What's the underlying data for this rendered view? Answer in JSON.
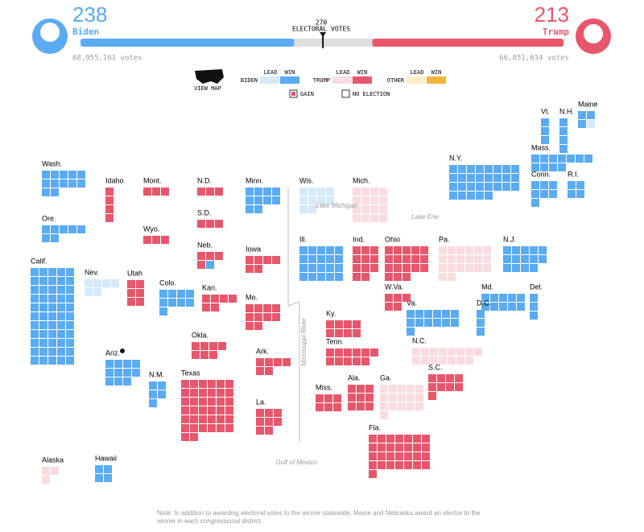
{
  "header": {
    "biden": {
      "votes": 238,
      "name": "Biden",
      "popular": "68,955,161 votes",
      "color": "#5aabf2"
    },
    "trump": {
      "votes": 213,
      "name": "Trump",
      "popular": "66,851,634 votes",
      "color": "#e8566b"
    },
    "threshold": {
      "value": 270,
      "label": "ELECTORAL VOTES"
    },
    "scale": [
      0,
      538
    ]
  },
  "legend": {
    "view_map": "VIEW MAP",
    "groups": [
      {
        "name": "BIDEN",
        "lead": "LEAD",
        "win": "WIN",
        "lead_color": "#d4e9fa",
        "win_color": "#5aabf2"
      },
      {
        "name": "TRUMP",
        "lead": "LEAD",
        "win": "WIN",
        "lead_color": "#f9dce0",
        "win_color": "#e8566b"
      },
      {
        "name": "OTHER",
        "lead": "LEAD",
        "win": "WIN",
        "lead_color": "#fbeec5",
        "win_color": "#f2b53a"
      }
    ],
    "gain": "GAIN",
    "no_election": "NO ELECTION"
  },
  "map": {
    "states": [
      {
        "label": "Wash.",
        "segments": [
          {
            "status": "biden-win",
            "votes": 12
          }
        ]
      },
      {
        "label": "Ore.",
        "segments": [
          {
            "status": "biden-win",
            "votes": 7
          }
        ]
      },
      {
        "label": "Calif.",
        "segments": [
          {
            "status": "biden-win",
            "votes": 55
          }
        ]
      },
      {
        "label": "Nev.",
        "segments": [
          {
            "status": "biden-lead",
            "votes": 6
          }
        ]
      },
      {
        "label": "Idaho",
        "segments": [
          {
            "status": "trump-win",
            "votes": 4
          }
        ]
      },
      {
        "label": "Mont.",
        "segments": [
          {
            "status": "trump-win",
            "votes": 3
          }
        ]
      },
      {
        "label": "Wyo.",
        "segments": [
          {
            "status": "trump-win",
            "votes": 3
          }
        ]
      },
      {
        "label": "Utah",
        "segments": [
          {
            "status": "trump-win",
            "votes": 6
          }
        ]
      },
      {
        "label": "Colo.",
        "segments": [
          {
            "status": "biden-win",
            "votes": 9
          }
        ]
      },
      {
        "label": "Ariz.",
        "segments": [
          {
            "status": "biden-win",
            "votes": 11
          }
        ]
      },
      {
        "label": "N.M.",
        "segments": [
          {
            "status": "biden-win",
            "votes": 5
          }
        ]
      },
      {
        "label": "N.D.",
        "segments": [
          {
            "status": "trump-win",
            "votes": 3
          }
        ]
      },
      {
        "label": "S.D.",
        "segments": [
          {
            "status": "trump-win",
            "votes": 3
          }
        ]
      },
      {
        "label": "Neb.",
        "segments": [
          {
            "status": "trump-win",
            "votes": 4
          },
          {
            "status": "biden-win",
            "votes": 1
          }
        ]
      },
      {
        "label": "Kan.",
        "segments": [
          {
            "status": "trump-win",
            "votes": 6
          }
        ]
      },
      {
        "label": "Okla.",
        "segments": [
          {
            "status": "trump-win",
            "votes": 7
          }
        ]
      },
      {
        "label": "Texas",
        "segments": [
          {
            "status": "trump-win",
            "votes": 38
          }
        ]
      },
      {
        "label": "Minn.",
        "segments": [
          {
            "status": "biden-win",
            "votes": 10
          }
        ]
      },
      {
        "label": "Iowa",
        "segments": [
          {
            "status": "trump-win",
            "votes": 6
          }
        ]
      },
      {
        "label": "Mo.",
        "segments": [
          {
            "status": "trump-win",
            "votes": 10
          }
        ]
      },
      {
        "label": "Ark.",
        "segments": [
          {
            "status": "trump-win",
            "votes": 6
          }
        ]
      },
      {
        "label": "La.",
        "segments": [
          {
            "status": "trump-win",
            "votes": 8
          }
        ]
      },
      {
        "label": "Wis.",
        "segments": [
          {
            "status": "biden-lead",
            "votes": 10
          }
        ]
      },
      {
        "label": "Mich.",
        "segments": [
          {
            "status": "trump-lead",
            "votes": 16
          }
        ]
      },
      {
        "label": "Ill.",
        "segments": [
          {
            "status": "biden-win",
            "votes": 20
          }
        ]
      },
      {
        "label": "Ind.",
        "segments": [
          {
            "status": "trump-win",
            "votes": 11
          }
        ]
      },
      {
        "label": "Ohio",
        "segments": [
          {
            "status": "trump-win",
            "votes": 18
          }
        ]
      },
      {
        "label": "Pa.",
        "segments": [
          {
            "status": "trump-lead",
            "votes": 20
          }
        ]
      },
      {
        "label": "Ky.",
        "segments": [
          {
            "status": "trump-win",
            "votes": 8
          }
        ]
      },
      {
        "label": "Tenn.",
        "segments": [
          {
            "status": "trump-win",
            "votes": 11
          }
        ]
      },
      {
        "label": "Miss.",
        "segments": [
          {
            "status": "trump-win",
            "votes": 6
          }
        ]
      },
      {
        "label": "Ala.",
        "segments": [
          {
            "status": "trump-win",
            "votes": 9
          }
        ]
      },
      {
        "label": "Ga.",
        "segments": [
          {
            "status": "trump-lead",
            "votes": 16
          }
        ]
      },
      {
        "label": "Fla.",
        "segments": [
          {
            "status": "trump-win",
            "votes": 29
          }
        ]
      },
      {
        "label": "S.C.",
        "segments": [
          {
            "status": "trump-win",
            "votes": 9
          }
        ]
      },
      {
        "label": "N.C.",
        "segments": [
          {
            "status": "trump-lead",
            "votes": 15
          }
        ]
      },
      {
        "label": "Va.",
        "segments": [
          {
            "status": "biden-win",
            "votes": 13
          }
        ]
      },
      {
        "label": "W.Va.",
        "segments": [
          {
            "status": "trump-win",
            "votes": 5
          }
        ]
      },
      {
        "label": "Md.",
        "segments": [
          {
            "status": "biden-win",
            "votes": 10
          }
        ]
      },
      {
        "label": "Del.",
        "segments": [
          {
            "status": "biden-win",
            "votes": 3
          }
        ]
      },
      {
        "label": "D.C.",
        "segments": [
          {
            "status": "biden-win",
            "votes": 3
          }
        ]
      },
      {
        "label": "N.J.",
        "segments": [
          {
            "status": "biden-win",
            "votes": 14
          }
        ]
      },
      {
        "label": "N.Y.",
        "segments": [
          {
            "status": "biden-win",
            "votes": 29
          }
        ]
      },
      {
        "label": "Conn.",
        "segments": [
          {
            "status": "biden-win",
            "votes": 7
          }
        ]
      },
      {
        "label": "R.I.",
        "segments": [
          {
            "status": "biden-win",
            "votes": 4
          }
        ]
      },
      {
        "label": "Mass.",
        "segments": [
          {
            "status": "biden-win",
            "votes": 11
          }
        ]
      },
      {
        "label": "Vt.",
        "segments": [
          {
            "status": "biden-win",
            "votes": 3
          }
        ]
      },
      {
        "label": "N.H.",
        "segments": [
          {
            "status": "biden-win",
            "votes": 4
          }
        ]
      },
      {
        "label": "Maine",
        "segments": [
          {
            "status": "biden-win",
            "votes": 3
          },
          {
            "status": "biden-lead",
            "votes": 1
          }
        ]
      },
      {
        "label": "Alaska",
        "segments": [
          {
            "status": "trump-lead",
            "votes": 3
          }
        ]
      },
      {
        "label": "Hawaii",
        "segments": [
          {
            "status": "biden-win",
            "votes": 4
          }
        ]
      }
    ],
    "water": [
      "Lake Michigan",
      "Lake Erie",
      "Mississippi River",
      "Gulf of Mexico"
    ]
  },
  "note": "Note: In addition to awarding electoral votes to the winner statewide, Maine and Nebraska award an elector to the winner in each congressional district."
}
